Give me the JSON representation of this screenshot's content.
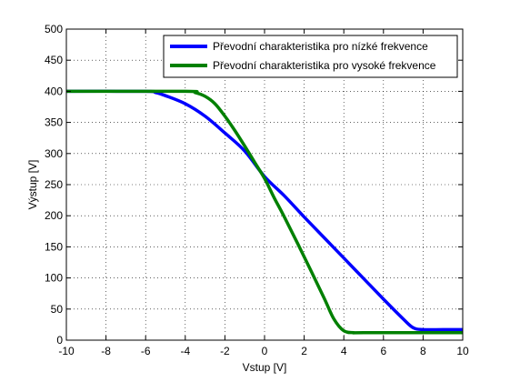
{
  "chart_data": {
    "type": "line",
    "xlabel": "Vstup [V]",
    "ylabel": "Výstup [V]",
    "xlim": [
      -10,
      10
    ],
    "ylim": [
      0,
      500
    ],
    "xticks": [
      -10,
      -8,
      -6,
      -4,
      -2,
      0,
      2,
      4,
      6,
      8,
      10
    ],
    "yticks": [
      0,
      50,
      100,
      150,
      200,
      250,
      300,
      350,
      400,
      450,
      500
    ],
    "grid": true,
    "grid_style": "dotted",
    "legend_position": "top-right",
    "series": [
      {
        "name": "Převodní charakteristika pro nízké frekvence",
        "color": "#0000ff",
        "x": [
          -10,
          -6,
          -5.5,
          -5,
          -4,
          -3,
          -2,
          -1,
          0,
          1,
          2,
          3,
          4,
          5,
          6,
          7,
          7.5,
          8,
          9,
          10
        ],
        "y": [
          400,
          400,
          398,
          393,
          380,
          360,
          333,
          304,
          263,
          232,
          198,
          165,
          132,
          99,
          66,
          34,
          20,
          17,
          17,
          17
        ]
      },
      {
        "name": "Převodní charakteristika pro vysoké frekvence",
        "color": "#008000",
        "x": [
          -10,
          -4,
          -3.5,
          -3,
          -2.5,
          -2,
          -1.5,
          -1,
          -0.5,
          0,
          0.5,
          1,
          2,
          3,
          3.5,
          4,
          4.5,
          5,
          10
        ],
        "y": [
          400,
          400,
          398,
          392,
          380,
          360,
          337,
          312,
          286,
          260,
          228,
          198,
          134,
          68,
          34,
          15,
          12,
          12,
          12
        ]
      }
    ]
  }
}
